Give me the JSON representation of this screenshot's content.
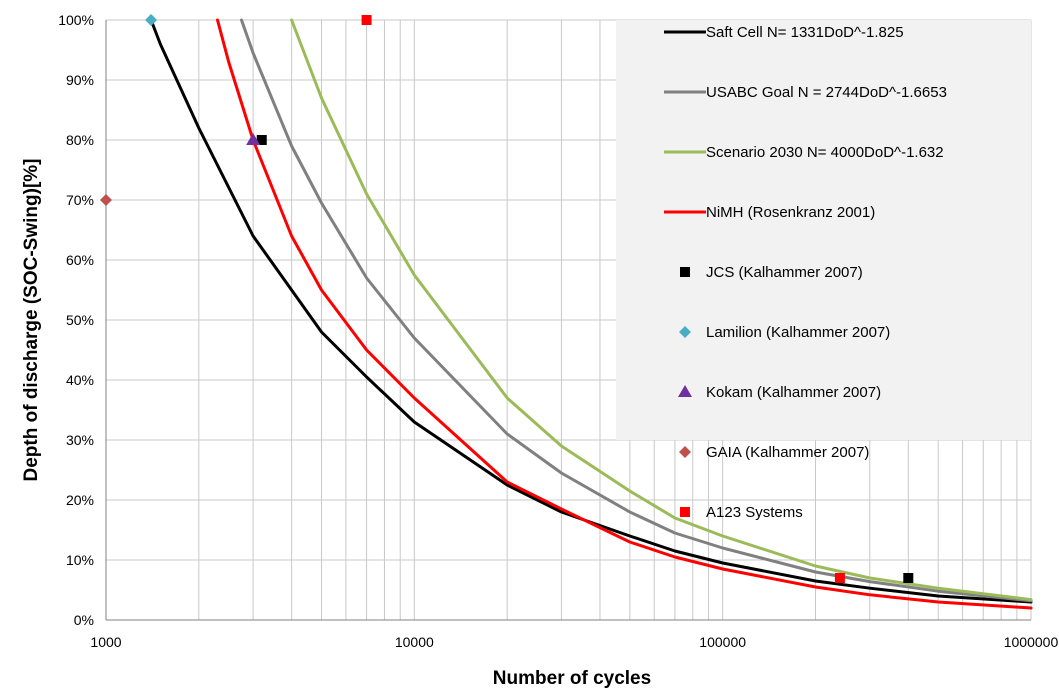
{
  "chart_data": {
    "type": "line",
    "xlabel": "Number of cycles",
    "ylabel": "Depth of discharge (SOC-Swing)[%]",
    "x_scale": "log",
    "xlim": [
      1000,
      1000000
    ],
    "ylim": [
      0,
      100
    ],
    "x_ticks": [
      1000,
      10000,
      100000,
      1000000
    ],
    "x_tick_labels": [
      "1000",
      "10000",
      "100000",
      "1000000"
    ],
    "y_ticks": [
      0,
      10,
      20,
      30,
      40,
      50,
      60,
      70,
      80,
      90,
      100
    ],
    "y_tick_labels": [
      "0%",
      "10%",
      "20%",
      "30%",
      "40%",
      "50%",
      "60%",
      "70%",
      "80%",
      "90%",
      "100%"
    ],
    "grid": true,
    "legend_position": "top-right",
    "series": [
      {
        "name": "Saft Cell  N= 1331DoD^-1.825",
        "kind": "line",
        "color": "#000000",
        "x": [
          1400,
          1500,
          2000,
          3000,
          4000,
          5000,
          7000,
          10000,
          20000,
          30000,
          50000,
          70000,
          100000,
          200000,
          300000,
          500000,
          1000000
        ],
        "y": [
          100,
          96,
          82,
          64,
          55,
          48,
          40.5,
          33,
          22.5,
          18,
          14,
          11.5,
          9.5,
          6.5,
          5.3,
          4,
          3
        ]
      },
      {
        "name": "USABC Goal N = 2744DoD^-1.6653",
        "kind": "line",
        "color": "#808080",
        "x": [
          2750,
          3000,
          4000,
          5000,
          7000,
          10000,
          20000,
          30000,
          50000,
          70000,
          100000,
          200000,
          300000,
          500000,
          1000000
        ],
        "y": [
          100,
          94.5,
          79,
          69.5,
          57,
          47,
          31,
          24.5,
          18,
          14.5,
          12,
          8,
          6.4,
          4.8,
          3.2
        ]
      },
      {
        "name": "Scenario 2030 N= 4000DoD^-1.632",
        "kind": "line",
        "color": "#9BBB59",
        "x": [
          4000,
          5000,
          7000,
          10000,
          20000,
          30000,
          50000,
          70000,
          100000,
          200000,
          300000,
          500000,
          1000000
        ],
        "y": [
          100,
          87,
          71,
          57.5,
          37,
          29,
          21.5,
          17,
          14,
          9,
          7,
          5.3,
          3.4
        ]
      },
      {
        "name": "NiMH (Rosenkranz 2001)",
        "kind": "line",
        "color": "#FF0000",
        "x": [
          2300,
          2500,
          3000,
          4000,
          5000,
          7000,
          10000,
          20000,
          30000,
          50000,
          70000,
          100000,
          200000,
          300000,
          500000,
          1000000
        ],
        "y": [
          100,
          93,
          80,
          64,
          55,
          45,
          37,
          23,
          18.5,
          13,
          10.5,
          8.5,
          5.5,
          4.2,
          3,
          2
        ]
      },
      {
        "name": "JCS (Kalhammer 2007)",
        "kind": "marker",
        "marker": "square",
        "color": "#000000",
        "x": [
          3200,
          400000
        ],
        "y": [
          80,
          7
        ]
      },
      {
        "name": "Lamilion (Kalhammer 2007)",
        "kind": "marker",
        "marker": "diamond",
        "color": "#4BACC6",
        "x": [
          1400
        ],
        "y": [
          100
        ]
      },
      {
        "name": "Kokam (Kalhammer 2007)",
        "kind": "marker",
        "marker": "triangle",
        "color": "#7030A0",
        "x": [
          3000
        ],
        "y": [
          80
        ]
      },
      {
        "name": "GAIA (Kalhammer 2007)",
        "kind": "marker",
        "marker": "diamond",
        "color": "#C0504D",
        "x": [
          1000
        ],
        "y": [
          70
        ]
      },
      {
        "name": "A123 Systems",
        "kind": "marker",
        "marker": "square",
        "color": "#FF0000",
        "x": [
          7000,
          240000
        ],
        "y": [
          100,
          7
        ]
      }
    ]
  }
}
